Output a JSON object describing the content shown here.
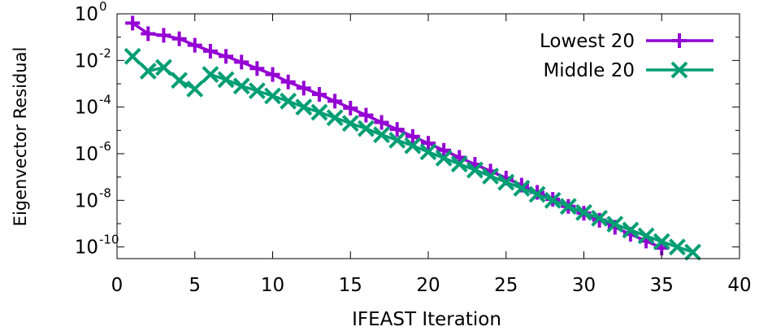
{
  "chart_data": {
    "type": "line",
    "title": "",
    "xlabel": "IFEAST Iteration",
    "ylabel": "Eigenvector Residual",
    "xlim": [
      0,
      40
    ],
    "ylim_exponent": [
      -10.5,
      0
    ],
    "yscale": "log",
    "x_ticks": [
      0,
      5,
      10,
      15,
      20,
      25,
      30,
      35,
      40
    ],
    "y_ticks": [
      {
        "base": "10",
        "exp": "0",
        "value_exp": 0
      },
      {
        "base": "10",
        "exp": "-2",
        "value_exp": -2
      },
      {
        "base": "10",
        "exp": "-4",
        "value_exp": -4
      },
      {
        "base": "10",
        "exp": "-6",
        "value_exp": -6
      },
      {
        "base": "10",
        "exp": "-8",
        "value_exp": -8
      },
      {
        "base": "10",
        "exp": "-10",
        "value_exp": -10
      }
    ],
    "legend_position": "top-right",
    "series": [
      {
        "name": "Lowest 20",
        "color": "#9400d3",
        "marker": "plus",
        "x": [
          1,
          2,
          3,
          4,
          5,
          6,
          7,
          8,
          9,
          10,
          11,
          12,
          13,
          14,
          15,
          16,
          17,
          18,
          19,
          20,
          21,
          22,
          23,
          24,
          25,
          26,
          27,
          28,
          29,
          30,
          31,
          32,
          33,
          34,
          35
        ],
        "y": [
          0.4,
          0.14,
          0.12,
          0.085,
          0.045,
          0.025,
          0.015,
          0.0085,
          0.0045,
          0.0025,
          0.0012,
          0.00065,
          0.00035,
          0.00018,
          9e-05,
          4.5e-05,
          2.2e-05,
          1.1e-05,
          5.5e-06,
          2.8e-06,
          1.4e-06,
          7e-07,
          3.5e-07,
          1.8e-07,
          9e-08,
          4.5e-08,
          2.2e-08,
          1.1e-08,
          5.5e-09,
          2.8e-09,
          1.4e-09,
          7e-10,
          3.5e-10,
          1.8e-10,
          9e-11
        ]
      },
      {
        "name": "Middle 20",
        "color": "#009e73",
        "marker": "cross",
        "x": [
          1,
          2,
          3,
          4,
          5,
          6,
          7,
          8,
          9,
          10,
          11,
          12,
          13,
          14,
          15,
          16,
          17,
          18,
          19,
          20,
          21,
          22,
          23,
          24,
          25,
          26,
          27,
          28,
          29,
          30,
          31,
          32,
          33,
          34,
          35,
          36,
          37
        ],
        "y": [
          0.015,
          0.0035,
          0.005,
          0.0014,
          0.0006,
          0.0025,
          0.0015,
          0.0008,
          0.0005,
          0.0003,
          0.00018,
          0.0001,
          6e-05,
          3.5e-05,
          2e-05,
          1.2e-05,
          6.5e-06,
          3.8e-06,
          2.2e-06,
          1.2e-06,
          6.5e-07,
          3.6e-07,
          2e-07,
          1.1e-07,
          6e-08,
          3.3e-08,
          1.8e-08,
          1e-08,
          5.5e-09,
          3e-09,
          1.7e-09,
          9.5e-10,
          5.3e-10,
          3e-10,
          1.7e-10,
          1e-10,
          6e-11
        ]
      }
    ]
  }
}
